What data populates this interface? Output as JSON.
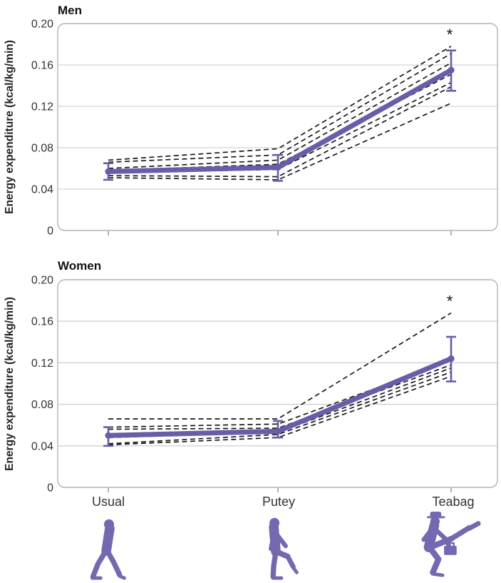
{
  "figure": {
    "y_axis_label": "Energy expenditure (kcal/kg/min)"
  },
  "x_axis": {
    "labels": [
      "Usual",
      "Putey",
      "Teabag"
    ]
  },
  "colors": {
    "mean_line": "#6a5ca8",
    "error_bar": "#6a5ca8",
    "individual_line": "#1a1a1a",
    "gridline": "#c9c9c9",
    "frame": "#b3b3b3",
    "tick": "#999999",
    "tick_text": "#333333",
    "title_text": "#111111",
    "asterisk": "#111111",
    "silhouette": "#7568b0"
  },
  "chart_data": [
    {
      "type": "line",
      "title": "Men",
      "ylabel": "Energy expenditure (kcal/kg/min)",
      "categories": [
        "Usual",
        "Putey",
        "Teabag"
      ],
      "ylim": [
        0,
        0.2
      ],
      "y_ticks": [
        0.2,
        0.16,
        0.12,
        0.08,
        0.04,
        0
      ],
      "y_tick_labels": [
        "0.20",
        "0.16",
        "0.12",
        "0.08",
        "0.04",
        "0"
      ],
      "grid": true,
      "legend": "none",
      "mean_series": {
        "name": "mean",
        "values": [
          0.057,
          0.061,
          0.155
        ],
        "ci_low": [
          0.049,
          0.048,
          0.135
        ],
        "ci_high": [
          0.065,
          0.073,
          0.174
        ]
      },
      "individual_series": [
        {
          "name": "participant-1",
          "values": [
            0.068,
            0.079,
            0.178
          ]
        },
        {
          "name": "participant-2",
          "values": [
            0.066,
            0.073,
            0.171
          ]
        },
        {
          "name": "participant-3",
          "values": [
            0.06,
            0.068,
            0.162
          ]
        },
        {
          "name": "participant-4",
          "values": [
            0.058,
            0.064,
            0.151
          ]
        },
        {
          "name": "participant-5",
          "values": [
            0.056,
            0.059,
            0.143
          ]
        },
        {
          "name": "participant-6",
          "values": [
            0.053,
            0.052,
            0.139
          ]
        },
        {
          "name": "participant-7",
          "values": [
            0.051,
            0.049,
            0.123
          ]
        }
      ],
      "annotation": {
        "text": "*",
        "category": "Teabag"
      }
    },
    {
      "type": "line",
      "title": "Women",
      "ylabel": "Energy expenditure (kcal/kg/min)",
      "categories": [
        "Usual",
        "Putey",
        "Teabag"
      ],
      "ylim": [
        0,
        0.2
      ],
      "y_ticks": [
        0.2,
        0.16,
        0.12,
        0.08,
        0.04,
        0
      ],
      "y_tick_labels": [
        "0.20",
        "0.16",
        "0.12",
        "0.08",
        "0.04",
        "0"
      ],
      "grid": true,
      "legend": "none",
      "mean_series": {
        "name": "mean",
        "values": [
          0.05,
          0.054,
          0.124
        ],
        "ci_low": [
          0.04,
          0.048,
          0.102
        ],
        "ci_high": [
          0.058,
          0.064,
          0.145
        ]
      },
      "individual_series": [
        {
          "name": "participant-1",
          "values": [
            0.066,
            0.066,
            0.168
          ]
        },
        {
          "name": "participant-2",
          "values": [
            0.058,
            0.061,
            0.122
          ]
        },
        {
          "name": "participant-3",
          "values": [
            0.056,
            0.057,
            0.118
          ]
        },
        {
          "name": "participant-4",
          "values": [
            0.048,
            0.053,
            0.115
          ]
        },
        {
          "name": "participant-5",
          "values": [
            0.042,
            0.051,
            0.111
          ]
        },
        {
          "name": "participant-6",
          "values": [
            0.041,
            0.048,
            0.107
          ]
        }
      ],
      "annotation": {
        "text": "*",
        "category": "Teabag"
      }
    }
  ],
  "silhouettes": [
    "usual-walk",
    "putey-walk",
    "teabag-walk"
  ]
}
